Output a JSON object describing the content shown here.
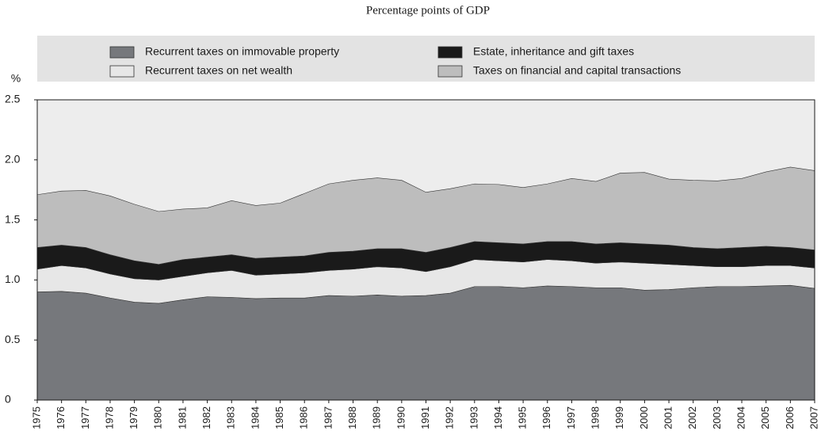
{
  "chart_data": {
    "type": "stacked-area",
    "subtitle": "Percentage points of GDP",
    "y_label": "%",
    "x": [
      1975,
      1976,
      1977,
      1978,
      1979,
      1980,
      1981,
      1982,
      1983,
      1984,
      1985,
      1986,
      1987,
      1988,
      1989,
      1990,
      1991,
      1992,
      1993,
      1994,
      1995,
      1996,
      1997,
      1998,
      1999,
      2000,
      2001,
      2002,
      2003,
      2004,
      2005,
      2006,
      2007
    ],
    "xlim": [
      1975,
      2007
    ],
    "ylim": [
      0,
      2.5
    ],
    "yticks": [
      0,
      0.5,
      {
        "value": 1,
        "label": "1.0"
      },
      1.5,
      {
        "value": 2,
        "label": "2.0"
      },
      2.5
    ],
    "series": [
      {
        "name": "Recurrent taxes on immovable property",
        "color": "#76787c",
        "values": [
          0.9,
          0.905,
          0.89,
          0.85,
          0.815,
          0.805,
          0.835,
          0.86,
          0.855,
          0.845,
          0.85,
          0.85,
          0.87,
          0.865,
          0.875,
          0.865,
          0.87,
          0.89,
          0.945,
          0.945,
          0.935,
          0.95,
          0.945,
          0.935,
          0.935,
          0.915,
          0.92,
          0.935,
          0.945,
          0.945,
          0.95,
          0.955,
          0.93
        ]
      },
      {
        "name": "Recurrent taxes on net wealth",
        "color": "#e7e7e7",
        "values": [
          0.19,
          0.215,
          0.21,
          0.2,
          0.195,
          0.195,
          0.195,
          0.2,
          0.225,
          0.195,
          0.2,
          0.21,
          0.21,
          0.225,
          0.235,
          0.235,
          0.2,
          0.22,
          0.225,
          0.215,
          0.215,
          0.22,
          0.215,
          0.205,
          0.215,
          0.225,
          0.21,
          0.185,
          0.165,
          0.165,
          0.17,
          0.165,
          0.17
        ]
      },
      {
        "name": "Estate, inheritance and gift taxes",
        "color": "#1a1a1a",
        "values": [
          0.18,
          0.17,
          0.17,
          0.16,
          0.15,
          0.13,
          0.14,
          0.13,
          0.13,
          0.14,
          0.14,
          0.14,
          0.15,
          0.15,
          0.15,
          0.16,
          0.16,
          0.16,
          0.15,
          0.15,
          0.15,
          0.15,
          0.16,
          0.16,
          0.16,
          0.16,
          0.16,
          0.15,
          0.15,
          0.16,
          0.16,
          0.15,
          0.15
        ]
      },
      {
        "name": "Taxes on financial and capital transactions",
        "color": "#bdbdbd",
        "values": [
          0.44,
          0.45,
          0.475,
          0.49,
          0.47,
          0.44,
          0.42,
          0.41,
          0.45,
          0.44,
          0.45,
          0.52,
          0.57,
          0.59,
          0.59,
          0.57,
          0.5,
          0.49,
          0.48,
          0.485,
          0.47,
          0.48,
          0.525,
          0.52,
          0.58,
          0.595,
          0.55,
          0.56,
          0.565,
          0.575,
          0.62,
          0.67,
          0.66
        ]
      }
    ],
    "legend": "top",
    "background": "#ededed"
  }
}
